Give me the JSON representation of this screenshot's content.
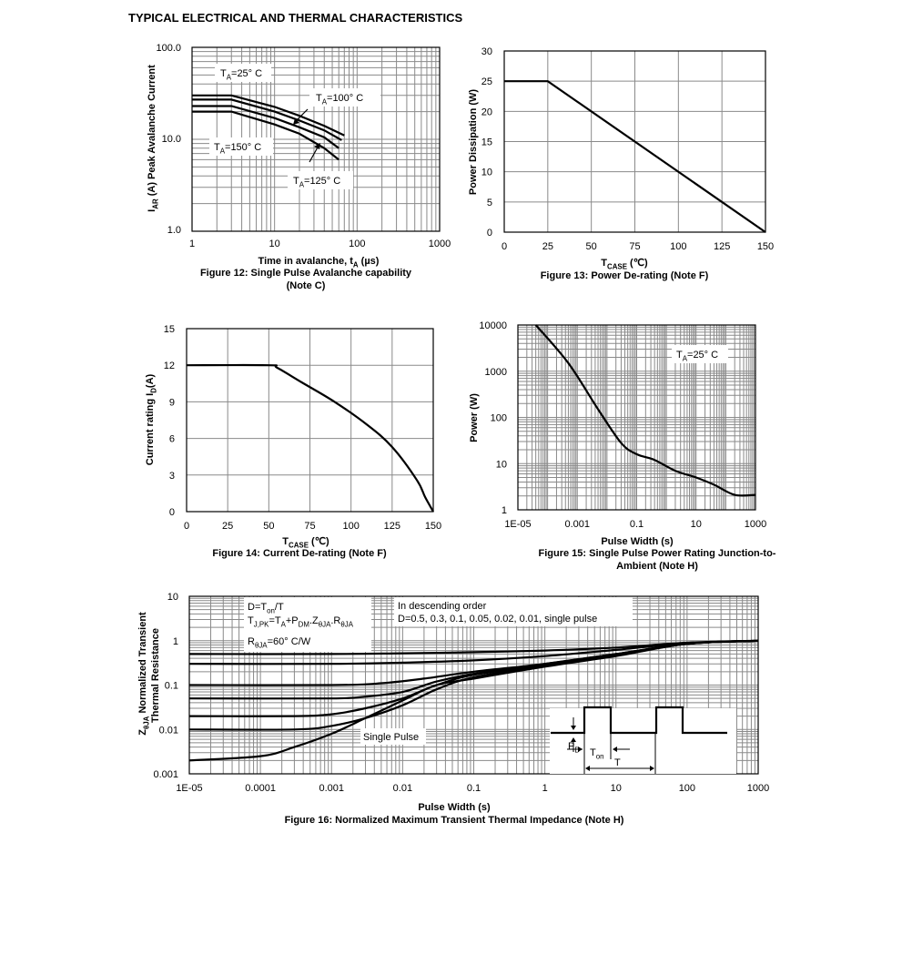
{
  "page_title": "TYPICAL ELECTRICAL AND THERMAL CHARACTERISTICS",
  "chart_data": [
    {
      "id": "fig12",
      "type": "line",
      "title": "Figure 12: Single Pulse Avalanche capability",
      "title2": "(Note C)",
      "xlabel_main": "Time in avalanche, t",
      "xlabel_sub": "A",
      "xlabel_unit": " (µs)",
      "ylabel_sym": "I",
      "ylabel_sub": "AR",
      "ylabel_rest": " (A) Peak Avalanche Current",
      "x_scale": "log",
      "y_scale": "log",
      "xlim": [
        1,
        1000
      ],
      "ylim": [
        1,
        100
      ],
      "x_ticks": [
        "1",
        "10",
        "100",
        "1000"
      ],
      "y_ticks": [
        "1.0",
        "10.0",
        "100.0"
      ],
      "grid": true,
      "series": [
        {
          "x": [
            1,
            3,
            10,
            20,
            40,
            70
          ],
          "y": [
            30,
            30,
            22.5,
            18,
            14,
            11
          ]
        },
        {
          "x": [
            1,
            3,
            10,
            20,
            40,
            65
          ],
          "y": [
            27,
            27,
            20,
            16,
            12.5,
            9.8
          ]
        },
        {
          "x": [
            1,
            3,
            10,
            20,
            40,
            60
          ],
          "y": [
            23,
            23,
            17,
            13.5,
            10.5,
            8
          ]
        },
        {
          "x": [
            1,
            3,
            10,
            20,
            40,
            60
          ],
          "y": [
            20,
            20,
            14.5,
            11.5,
            8,
            6
          ]
        }
      ],
      "annotations": [
        {
          "main": "T",
          "sub": "A",
          "rest": "=25° C"
        },
        {
          "main": "T",
          "sub": "A",
          "rest": "=100° C"
        },
        {
          "main": "T",
          "sub": "A",
          "rest": "=150° C"
        },
        {
          "main": "T",
          "sub": "A",
          "rest": "=125° C"
        }
      ]
    },
    {
      "id": "fig13",
      "type": "line",
      "title": "Figure 13: Power De-rating (Note F)",
      "xlabel_main": "T",
      "xlabel_sub": "CASE",
      "xlabel_unit": " (℃)",
      "ylabel": "Power Dissipation (W)",
      "xlim": [
        0,
        150
      ],
      "ylim": [
        0,
        30
      ],
      "x_ticks": [
        "0",
        "25",
        "50",
        "75",
        "100",
        "125",
        "150"
      ],
      "y_ticks": [
        "0",
        "5",
        "10",
        "15",
        "20",
        "25",
        "30"
      ],
      "grid": true,
      "series": [
        {
          "x": [
            0,
            25,
            150
          ],
          "y": [
            25,
            25,
            0
          ]
        }
      ]
    },
    {
      "id": "fig14",
      "type": "line",
      "title": "Figure 14: Current De-rating (Note F)",
      "xlabel_main": "T",
      "xlabel_sub": "CASE",
      "xlabel_unit": " (℃)",
      "ylabel_main": "Current rating I",
      "ylabel_sub": "D",
      "ylabel_unit": "(A)",
      "xlim": [
        0,
        150
      ],
      "ylim": [
        0,
        15
      ],
      "x_ticks": [
        "0",
        "25",
        "50",
        "75",
        "100",
        "125",
        "150"
      ],
      "y_ticks": [
        "0",
        "3",
        "6",
        "9",
        "12",
        "15"
      ],
      "grid": true,
      "series": [
        {
          "x": [
            0,
            50,
            55,
            70,
            90,
            110,
            125,
            140,
            145,
            150
          ],
          "y": [
            12,
            12,
            11.8,
            10.6,
            9.0,
            7.1,
            5.3,
            2.6,
            1.2,
            0
          ]
        }
      ]
    },
    {
      "id": "fig15",
      "type": "line",
      "title": "Figure 15: Single Pulse Power Rating Junction-to-",
      "title2": "Ambient (Note H)",
      "xlabel": "Pulse Width (s)",
      "ylabel": "Power (W)",
      "x_scale": "log",
      "y_scale": "log",
      "xlim": [
        1e-05,
        1000
      ],
      "ylim": [
        1,
        10000
      ],
      "x_ticks": [
        "1E-05",
        "0.001",
        "0.1",
        "10",
        "1000"
      ],
      "y_ticks": [
        "1",
        "10",
        "100",
        "1000",
        "10000"
      ],
      "grid": true,
      "series": [
        {
          "x": [
            4e-05,
            0.0005,
            0.005,
            0.03,
            0.1,
            0.4,
            2,
            10,
            40,
            200,
            1000
          ],
          "y": [
            10000,
            1500,
            150,
            28,
            16,
            12,
            7,
            5,
            3.5,
            2.1,
            2.1
          ]
        }
      ],
      "annotations": [
        {
          "main": "T",
          "sub": "A",
          "rest": "=25° C"
        }
      ]
    },
    {
      "id": "fig16",
      "type": "line",
      "title": "Figure 16: Normalized Maximum Transient Thermal Impedance (Note H)",
      "xlabel": "Pulse Width (s)",
      "ylabel1_main": "Z",
      "ylabel1_sub": "θJA",
      "ylabel1_rest": " Normalized Transient",
      "ylabel2": "Thermal Resistance",
      "x_scale": "log",
      "y_scale": "log",
      "xlim": [
        1e-05,
        1000
      ],
      "ylim": [
        0.001,
        10
      ],
      "x_ticks": [
        "1E-05",
        "0.0001",
        "0.001",
        "0.01",
        "0.1",
        "1",
        "10",
        "100",
        "1000"
      ],
      "y_ticks": [
        "0.001",
        "0.01",
        "0.1",
        "1",
        "10"
      ],
      "grid": true,
      "series": [
        {
          "name": "D=0.5",
          "x": [
            1e-05,
            0.001,
            0.01,
            0.1,
            1,
            10,
            100,
            1000
          ],
          "y": [
            0.5,
            0.5,
            0.52,
            0.55,
            0.6,
            0.7,
            0.9,
            1.0
          ]
        },
        {
          "name": "D=0.3",
          "x": [
            1e-05,
            0.001,
            0.01,
            0.1,
            1,
            10,
            100,
            1000
          ],
          "y": [
            0.3,
            0.3,
            0.32,
            0.36,
            0.45,
            0.62,
            0.88,
            1.0
          ]
        },
        {
          "name": "D=0.1",
          "x": [
            1e-05,
            0.001,
            0.005,
            0.02,
            0.1,
            1,
            10,
            100,
            1000
          ],
          "y": [
            0.1,
            0.1,
            0.11,
            0.14,
            0.2,
            0.3,
            0.5,
            0.85,
            1.0
          ]
        },
        {
          "name": "D=0.05",
          "x": [
            1e-05,
            0.001,
            0.003,
            0.01,
            0.03,
            0.1,
            1,
            10,
            100,
            1000
          ],
          "y": [
            0.05,
            0.05,
            0.055,
            0.07,
            0.12,
            0.18,
            0.3,
            0.5,
            0.85,
            1.0
          ]
        },
        {
          "name": "D=0.02",
          "x": [
            1e-05,
            0.0003,
            0.001,
            0.003,
            0.01,
            0.03,
            0.1,
            1,
            10,
            100,
            1000
          ],
          "y": [
            0.02,
            0.02,
            0.022,
            0.03,
            0.05,
            0.1,
            0.17,
            0.28,
            0.48,
            0.85,
            1.0
          ]
        },
        {
          "name": "D=0.01",
          "x": [
            1e-05,
            0.0003,
            0.001,
            0.003,
            0.01,
            0.03,
            0.1,
            1,
            10,
            100,
            1000
          ],
          "y": [
            0.01,
            0.01,
            0.012,
            0.018,
            0.035,
            0.08,
            0.15,
            0.27,
            0.47,
            0.85,
            1.0
          ]
        },
        {
          "name": "single pulse",
          "x": [
            1e-05,
            0.0001,
            0.0003,
            0.001,
            0.003,
            0.01,
            0.03,
            0.1,
            1,
            10,
            100,
            1000
          ],
          "y": [
            0.002,
            0.0025,
            0.004,
            0.008,
            0.018,
            0.045,
            0.1,
            0.14,
            0.26,
            0.45,
            0.85,
            1.0
          ]
        }
      ],
      "legend_box": {
        "line1_main": "D=T",
        "line1_sub": "on",
        "line1_rest": "/T",
        "line2_parts": [
          {
            "t": "T",
            "s": false
          },
          {
            "t": "J,PK",
            "s": true
          },
          {
            "t": "=T",
            "s": false
          },
          {
            "t": "A",
            "s": true
          },
          {
            "t": "+P",
            "s": false
          },
          {
            "t": "DM",
            "s": true
          },
          {
            "t": ".Z",
            "s": false
          },
          {
            "t": "θJA",
            "s": true
          },
          {
            "t": ".R",
            "s": false
          },
          {
            "t": "θJA",
            "s": true
          }
        ],
        "line3_main": "R",
        "line3_sub": "θJA",
        "line3_rest": "=60° C/W"
      },
      "order_box": {
        "line1": "In descending order",
        "line2": "D=0.5, 0.3, 0.1, 0.05, 0.02, 0.01, single pulse"
      },
      "single_pulse_label": "Single Pulse",
      "inset": {
        "pd_main": "P",
        "pd_sub": "D",
        "ton_main": "T",
        "ton_sub": "on",
        "t_label": "T"
      }
    }
  ]
}
